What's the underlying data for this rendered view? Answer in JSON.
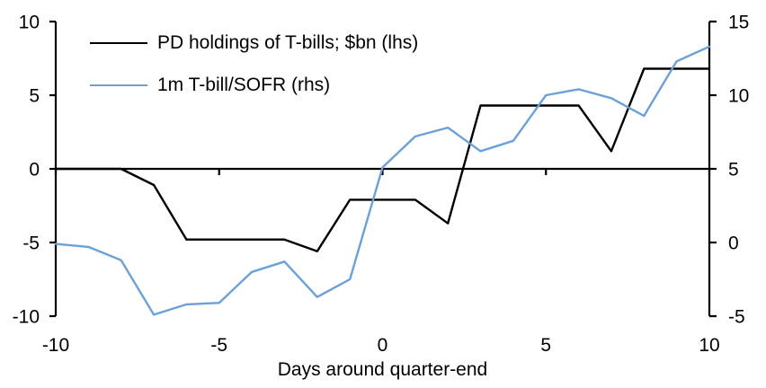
{
  "chart_data": {
    "type": "line",
    "title": "",
    "xlabel": "Days around quarter-end",
    "ylabel_left": "",
    "ylabel_right": "",
    "grid": false,
    "legend_position": "top-left",
    "x": [
      -10,
      -9,
      -8,
      -7,
      -6,
      -5,
      -4,
      -3,
      -2,
      -1,
      0,
      1,
      2,
      3,
      4,
      5,
      6,
      7,
      8,
      9,
      10
    ],
    "x_axis": {
      "range": [
        -10,
        10
      ],
      "ticks": [
        -10,
        -5,
        0,
        5,
        10
      ]
    },
    "left_axis": {
      "range": [
        -10,
        10
      ],
      "ticks": [
        10,
        5,
        0,
        -5,
        -10
      ]
    },
    "right_axis": {
      "range": [
        -5,
        15
      ],
      "ticks": [
        15,
        10,
        5,
        0,
        -5
      ]
    },
    "series": [
      {
        "name": "PD holdings of T-bills; $bn (lhs)",
        "axis": "lhs",
        "color": "#000000",
        "values": [
          0,
          0,
          0,
          -1.1,
          -4.8,
          -4.8,
          -4.8,
          -4.8,
          -5.6,
          -2.1,
          -2.1,
          -2.1,
          -3.7,
          4.3,
          4.3,
          4.3,
          4.3,
          1.2,
          6.8,
          6.8,
          6.8
        ]
      },
      {
        "name": "1m T-bill/SOFR (rhs)",
        "axis": "rhs",
        "color": "#6BA1D6",
        "values": [
          -0.1,
          -0.3,
          -1.2,
          -4.9,
          -4.2,
          -4.1,
          -2.0,
          -1.3,
          -3.7,
          -2.5,
          5.1,
          7.2,
          7.8,
          6.2,
          6.9,
          10.0,
          10.4,
          9.8,
          8.6,
          12.3,
          13.3
        ]
      }
    ],
    "axis_color": "#000000"
  }
}
